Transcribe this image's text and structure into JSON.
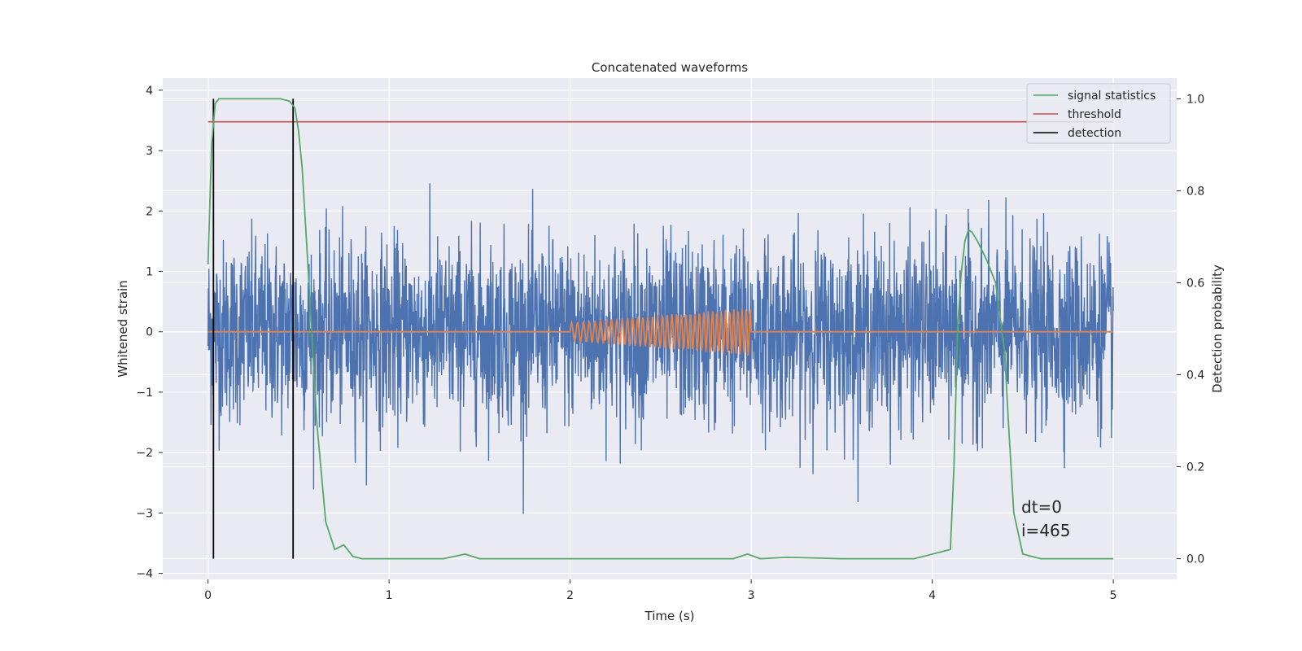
{
  "chart_data": {
    "type": "line",
    "title": "Concatenated waveforms",
    "xlabel": "Time (s)",
    "ylabel": "Whitened strain",
    "y2label": "Detection probability",
    "xlim": [
      -0.25,
      5.35
    ],
    "ylim": [
      -4.1,
      4.2
    ],
    "y2lim": [
      -0.045,
      1.045
    ],
    "xticks": [
      "0",
      "1",
      "2",
      "3",
      "4",
      "5"
    ],
    "yticks": [
      "−4",
      "−3",
      "−2",
      "−1",
      "0",
      "1",
      "2",
      "3",
      "4"
    ],
    "y2ticks": [
      "0.0",
      "0.2",
      "0.4",
      "0.6",
      "0.8",
      "1.0"
    ],
    "grid": true,
    "legend_position": "top-right",
    "colors": {
      "strain": "#4c72b0",
      "waveform": "#dd8452",
      "signal": "#55a868",
      "threshold": "#c44e52",
      "detection": "#000000",
      "background": "#eaeaf2"
    },
    "legend": [
      {
        "name": "signal statistics",
        "color": "#55a868"
      },
      {
        "name": "threshold",
        "color": "#c44e52"
      },
      {
        "name": "detection",
        "color": "#000000"
      }
    ],
    "annotation": [
      "dt=0",
      "i=465"
    ],
    "strain": {
      "x_range": [
        0,
        5
      ],
      "std": 0.75,
      "typical_max": 3.0
    },
    "waveform": {
      "start": 2.0,
      "end": 3.0,
      "amp_start": 0.15,
      "amp_end": 0.4,
      "cycles": 30
    },
    "threshold": {
      "value": 0.95,
      "x_range": [
        0,
        5
      ]
    },
    "detections": [
      0.03,
      0.47
    ],
    "signal_statistics": {
      "x": [
        0,
        0.02,
        0.04,
        0.06,
        0.1,
        0.2,
        0.3,
        0.4,
        0.45,
        0.48,
        0.5,
        0.52,
        0.55,
        0.6,
        0.65,
        0.7,
        0.75,
        0.8,
        0.85,
        1.0,
        1.3,
        1.42,
        1.5,
        2.0,
        2.9,
        2.98,
        3.05,
        3.2,
        3.5,
        3.9,
        4.1,
        4.12,
        4.14,
        4.16,
        4.18,
        4.2,
        4.22,
        4.25,
        4.3,
        4.35,
        4.4,
        4.42,
        4.45,
        4.5,
        4.6,
        5.0
      ],
      "y": [
        0.64,
        0.9,
        0.99,
        1.0,
        1.0,
        1.0,
        1.0,
        1.0,
        0.995,
        0.98,
        0.93,
        0.85,
        0.65,
        0.3,
        0.08,
        0.02,
        0.03,
        0.005,
        0.0,
        0.0,
        0.0,
        0.01,
        0.0,
        0.0,
        0.0,
        0.01,
        0.0,
        0.003,
        0.0,
        0.0,
        0.02,
        0.2,
        0.5,
        0.62,
        0.69,
        0.715,
        0.71,
        0.69,
        0.65,
        0.6,
        0.45,
        0.3,
        0.1,
        0.01,
        0.0,
        0.0
      ]
    }
  }
}
